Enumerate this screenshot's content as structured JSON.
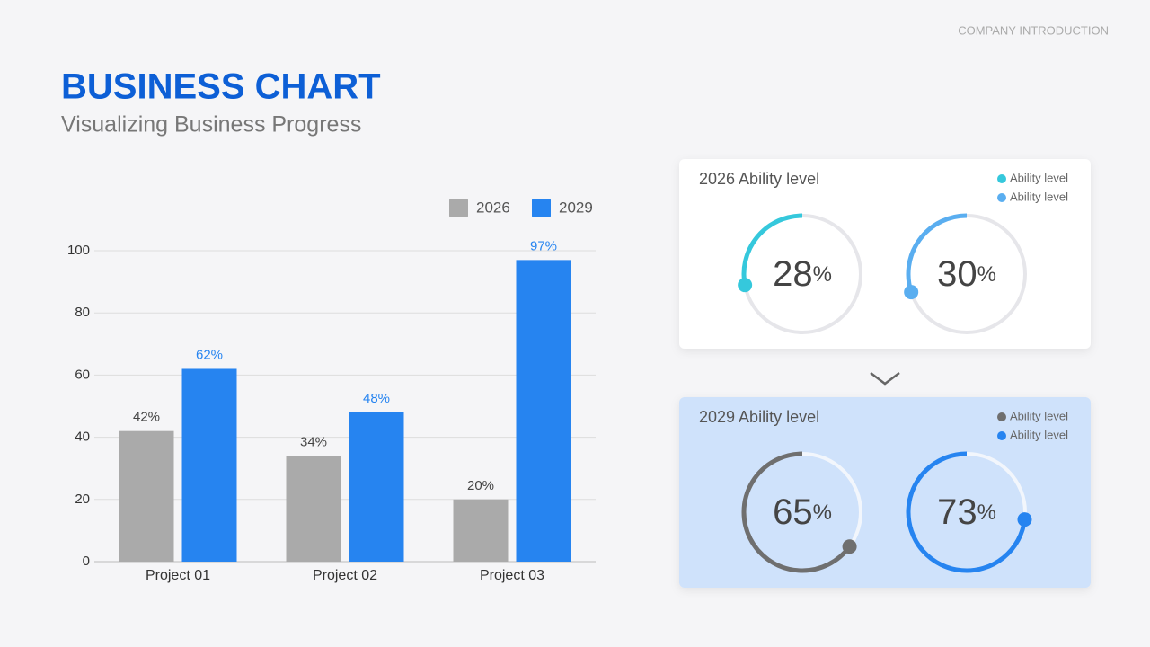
{
  "header": {
    "label": "COMPANY INTRODUCTION",
    "title": "BUSINESS CHART",
    "subtitle": "Visualizing Business Progress"
  },
  "chart_data": [
    {
      "type": "bar",
      "categories": [
        "Project 01",
        "Project 02",
        "Project 03"
      ],
      "series": [
        {
          "name": "2026",
          "color": "#aaaaaa",
          "values": [
            42,
            34,
            20
          ],
          "value_labels": [
            "42%",
            "34%",
            "20%"
          ]
        },
        {
          "name": "2029",
          "color": "#2684f0",
          "values": [
            62,
            48,
            97
          ],
          "value_labels": [
            "62%",
            "48%",
            "97%"
          ]
        }
      ],
      "ylim": [
        0,
        100
      ],
      "yticks": [
        0,
        20,
        40,
        60,
        80,
        100
      ],
      "grid": true,
      "legend": "top-right"
    },
    {
      "type": "donut",
      "title": "2026 Ability level",
      "unit": "%",
      "series": [
        {
          "name": "Ability level",
          "color": "#35c8dc",
          "values": [
            28
          ]
        },
        {
          "name": "Ability level",
          "color": "#5aaef0",
          "values": [
            30
          ]
        }
      ]
    },
    {
      "type": "donut",
      "title": "2029 Ability level",
      "unit": "%",
      "series": [
        {
          "name": "Ability level",
          "color": "#6f6f6f",
          "values": [
            65
          ]
        },
        {
          "name": "Ability level",
          "color": "#2684f0",
          "values": [
            73
          ]
        }
      ]
    }
  ]
}
